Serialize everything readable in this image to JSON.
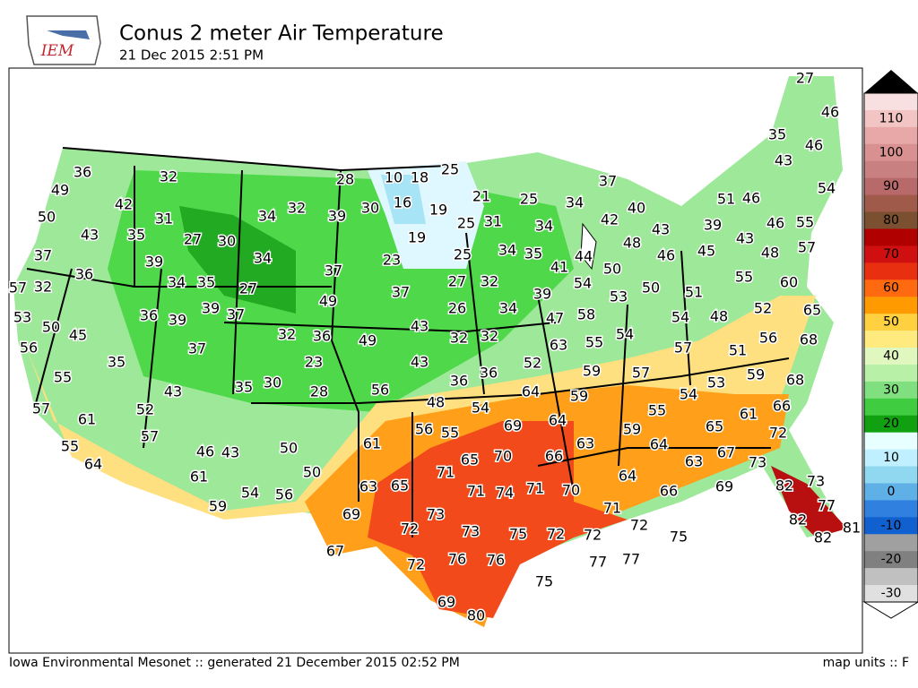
{
  "header": {
    "logo": "IEM",
    "title": "Conus 2 meter Air Temperature",
    "subtitle": "21 Dec 2015 2:51 PM"
  },
  "footer": {
    "left": "Iowa Environmental Mesonet :: generated 21 December 2015 02:52 PM",
    "right": "map units :: F"
  },
  "colorbar": {
    "labels": [
      "110",
      "100",
      "90",
      "80",
      "70",
      "60",
      "50",
      "40",
      "30",
      "20",
      "10",
      "0",
      "-10",
      "-20",
      "-30"
    ]
  },
  "stations": [
    36,
    49,
    50,
    42,
    32,
    31,
    35,
    43,
    37,
    27,
    30,
    34,
    32,
    39,
    28,
    30,
    10,
    18,
    25,
    16,
    19,
    21,
    25,
    34,
    37,
    19,
    25,
    31,
    34,
    42,
    40,
    43,
    48,
    27,
    46,
    35,
    46,
    43,
    54,
    51,
    46,
    39,
    46,
    55,
    43,
    57,
    48,
    45,
    46,
    55,
    60,
    65,
    68,
    52,
    56,
    51,
    59,
    68,
    48,
    51,
    54,
    50,
    53,
    50,
    44,
    41,
    54,
    58,
    55,
    54,
    57,
    57,
    47,
    39,
    35,
    34,
    32,
    27,
    25,
    34,
    26,
    32,
    32,
    63,
    52,
    59,
    37,
    23,
    34,
    39,
    34,
    35,
    27,
    36,
    37,
    39,
    49,
    37,
    57,
    32,
    53,
    50,
    36,
    39,
    45,
    56,
    35,
    37,
    32,
    36,
    49,
    43,
    43,
    23,
    35,
    30,
    28,
    56,
    36,
    36,
    48,
    54,
    64,
    59,
    54,
    53,
    55,
    61,
    66,
    72,
    65,
    67,
    73,
    63,
    64,
    59,
    64,
    69,
    63,
    66,
    70,
    65,
    71,
    55,
    56,
    61,
    55,
    43,
    57,
    61,
    52,
    57,
    55,
    64,
    46,
    43,
    50,
    50,
    61,
    54,
    56,
    59,
    63,
    65,
    71,
    74,
    71,
    70,
    64,
    66,
    69,
    82,
    73,
    77,
    82,
    81,
    82,
    69,
    72,
    73,
    73,
    75,
    72,
    72,
    71,
    72,
    75,
    77,
    77,
    75,
    67,
    72,
    76,
    76,
    69,
    80
  ]
}
